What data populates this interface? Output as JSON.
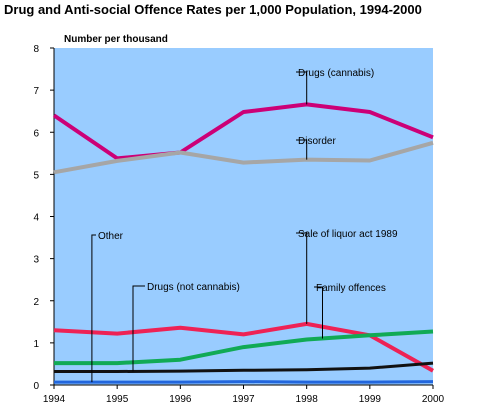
{
  "chart_data": {
    "type": "line",
    "title": "Drug and Anti-social Offence Rates per 1,000 Population, 1994-2000",
    "ylabel": "Number per thousand",
    "xlabel": "",
    "x": [
      1994,
      1995,
      1996,
      1997,
      1998,
      1999,
      2000
    ],
    "ylim": [
      0,
      8
    ],
    "yticks": [
      "0",
      "1",
      "2",
      "3",
      "4",
      "5",
      "6",
      "7",
      "8"
    ],
    "grid": false,
    "background": "#99ccff",
    "series": [
      {
        "name": "Drugs (cannabis)",
        "color": "#cc0077",
        "values": [
          6.4,
          5.38,
          5.52,
          6.48,
          6.66,
          6.48,
          5.88
        ]
      },
      {
        "name": "Disorder",
        "color": "#a6a6a6",
        "values": [
          5.05,
          5.32,
          5.52,
          5.28,
          5.35,
          5.33,
          5.75
        ]
      },
      {
        "name": "Sale of liquor act 1989",
        "color": "#ee2255",
        "values": [
          1.3,
          1.22,
          1.36,
          1.2,
          1.45,
          1.18,
          0.34
        ]
      },
      {
        "name": "Family offences",
        "color": "#11aa55",
        "values": [
          0.52,
          0.52,
          0.6,
          0.9,
          1.08,
          1.18,
          1.27
        ]
      },
      {
        "name": "Drugs (not cannabis)",
        "color": "#111111",
        "values": [
          0.32,
          0.32,
          0.33,
          0.35,
          0.36,
          0.4,
          0.52
        ]
      },
      {
        "name": "Other",
        "color": "#2266dd",
        "values": [
          0.07,
          0.07,
          0.07,
          0.08,
          0.07,
          0.07,
          0.08
        ]
      }
    ]
  }
}
